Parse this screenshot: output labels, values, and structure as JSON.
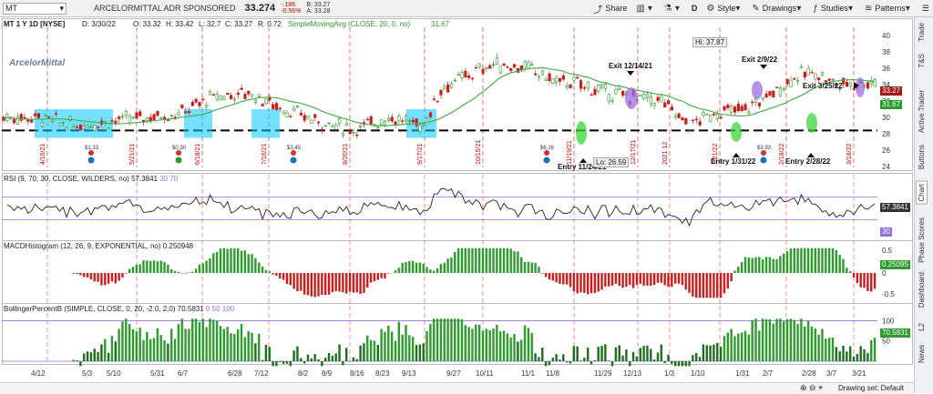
{
  "header": {
    "symbol": "MT",
    "company": "ARCELORMITTAL ADR SPONSORED",
    "price": "33.274",
    "change": "-.186",
    "change_pct": "-0.56%",
    "bid": "B: 33.27",
    "ask": "A: 33.28",
    "share_label": "Share",
    "period_label": "D",
    "style_label": "Style",
    "drawings_label": "Drawings",
    "studies_label": "Studies",
    "patterns_label": "Patterns"
  },
  "chart_info": {
    "title": "MT 1 Y 1D [NYSE]",
    "date": "D: 3/30/22",
    "open": "O: 33.32",
    "high": "H: 33.42",
    "low": "L: 32.7",
    "close": "C: 33.27",
    "range": "R: 0.72",
    "sma_label": "SimpleMovingAvg (CLOSE, 20, 0, no)",
    "sma_value": "31.67",
    "price_tag": "33.27",
    "sma_tag": "31.67",
    "logo_text": "ArcelorMittal",
    "hi_label": "Hi: 37.87",
    "lo_label": "Lo: 26.59",
    "price_axis": [
      "40",
      "38",
      "36",
      "34",
      "32",
      "30",
      "28",
      "26",
      "24"
    ],
    "vlines": [
      "4/16/21",
      "5/21/21",
      "6/18/21",
      "7/16/21",
      "8/20/21",
      "9/17/21",
      "10/15/21",
      "11/19/21",
      "12/17/21",
      "2021 12",
      "1/21/22",
      "2/18/22",
      "3/18/22"
    ],
    "annotations": [
      "Exit 12/14/21",
      "Entry 11/24/21",
      "Exit 2/9/22",
      "Entry 1/31/22",
      "Exit 3/25/22",
      "Entry 2/28/22"
    ],
    "dividends": [
      "$1.33",
      "$0.30",
      "$3.45",
      "$6.16",
      "$3.93"
    ]
  },
  "rsi": {
    "label": "RSI (9, 70, 30, CLOSE, WILDERS, no)",
    "value": "57.3841",
    "lv1": "30",
    "lv2": "70",
    "tag": "57.3841",
    "tag2": "30"
  },
  "macd": {
    "label": "MACDHistogram (12, 26, 9, EXPONENTIAL, no)",
    "value": "0.250948",
    "tag": "0.25095",
    "ticks": [
      "0.5",
      "0",
      "-0.5"
    ]
  },
  "bb": {
    "label": "BollingerPercentB (SIMPLE, CLOSE, 0, 20, -2.0, 2.0)",
    "value": "70.5831",
    "lv1": "0",
    "lv2": "50",
    "lv3": "100",
    "tag": "70.5831",
    "ticks": [
      "100",
      "50",
      "0"
    ]
  },
  "xaxis": [
    "4/12",
    "5/3",
    "5/10",
    "5/31",
    "6/7",
    "6/28",
    "7/12",
    "8/2",
    "8/9",
    "8/16",
    "8/23",
    "9/13",
    "9/27",
    "10/11",
    "11/1",
    "11/8",
    "11/29",
    "12/13",
    "1/3",
    "1/10",
    "1/31",
    "2/7",
    "2/28",
    "3/7",
    "3/21"
  ],
  "rightbar": [
    "Trade",
    "T&S",
    "Active Trader",
    "Buttons",
    "Chart",
    "Phase Scores",
    "Dashboard",
    "L2",
    "News"
  ],
  "footer": {
    "drawing_set": "Drawing set: Default"
  },
  "colors": {
    "up": "#2e9b2e",
    "down": "#c81e1e",
    "sma": "#4caf50",
    "highlight": "#00c8ff",
    "purple": "#9b6fe0",
    "ellipse_green": "#3cd43c",
    "rsi_line": "#222",
    "rsi_level": "#9370db"
  }
}
